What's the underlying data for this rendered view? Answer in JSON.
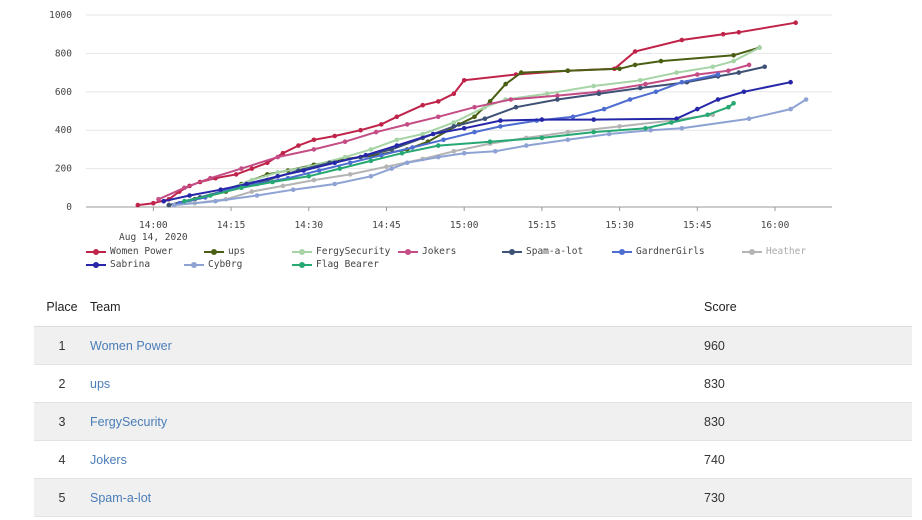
{
  "chart_data": {
    "type": "line",
    "x_axis": {
      "ticks": [
        "14:00",
        "14:15",
        "14:30",
        "14:45",
        "15:00",
        "15:15",
        "15:30",
        "15:45",
        "16:00"
      ],
      "date_label": "Aug 14, 2020"
    },
    "y_axis": {
      "ticks": [
        0,
        200,
        400,
        600,
        800,
        1000
      ],
      "range": [
        0,
        1000
      ]
    },
    "grid": "horizontal",
    "legend_position": "bottom-left",
    "series": [
      {
        "name": "Women Power",
        "color": "#c0234a",
        "points": [
          [
            "13:57",
            10
          ],
          [
            "14:00",
            20
          ],
          [
            "14:03",
            40
          ],
          [
            "14:05",
            80
          ],
          [
            "14:07",
            110
          ],
          [
            "14:09",
            130
          ],
          [
            "14:12",
            150
          ],
          [
            "14:16",
            170
          ],
          [
            "14:19",
            200
          ],
          [
            "14:22",
            230
          ],
          [
            "14:25",
            280
          ],
          [
            "14:28",
            320
          ],
          [
            "14:31",
            350
          ],
          [
            "14:35",
            370
          ],
          [
            "14:40",
            400
          ],
          [
            "14:44",
            430
          ],
          [
            "14:47",
            470
          ],
          [
            "14:52",
            530
          ],
          [
            "14:55",
            550
          ],
          [
            "14:58",
            590
          ],
          [
            "15:00",
            660
          ],
          [
            "15:10",
            690
          ],
          [
            "15:20",
            710
          ],
          [
            "15:29",
            720
          ],
          [
            "15:33",
            810
          ],
          [
            "15:42",
            870
          ],
          [
            "15:50",
            900
          ],
          [
            "15:53",
            910
          ],
          [
            "16:04",
            960
          ]
        ]
      },
      {
        "name": "ups",
        "color": "#4a5f14",
        "points": [
          [
            "14:03",
            10
          ],
          [
            "14:08",
            40
          ],
          [
            "14:14",
            80
          ],
          [
            "14:17",
            120
          ],
          [
            "14:22",
            170
          ],
          [
            "14:26",
            190
          ],
          [
            "14:31",
            220
          ],
          [
            "14:37",
            250
          ],
          [
            "14:43",
            270
          ],
          [
            "14:49",
            300
          ],
          [
            "14:53",
            340
          ],
          [
            "14:59",
            430
          ],
          [
            "15:02",
            470
          ],
          [
            "15:05",
            550
          ],
          [
            "15:08",
            640
          ],
          [
            "15:11",
            700
          ],
          [
            "15:20",
            710
          ],
          [
            "15:30",
            720
          ],
          [
            "15:33",
            740
          ],
          [
            "15:38",
            760
          ],
          [
            "15:52",
            790
          ],
          [
            "15:57",
            830
          ]
        ]
      },
      {
        "name": "FergySecurity",
        "color": "#a6d4a6",
        "points": [
          [
            "14:07",
            30
          ],
          [
            "14:13",
            80
          ],
          [
            "14:19",
            140
          ],
          [
            "14:24",
            180
          ],
          [
            "14:30",
            210
          ],
          [
            "14:37",
            260
          ],
          [
            "14:42",
            300
          ],
          [
            "14:47",
            350
          ],
          [
            "14:52",
            380
          ],
          [
            "14:58",
            440
          ],
          [
            "15:04",
            520
          ],
          [
            "15:08",
            560
          ],
          [
            "15:16",
            590
          ],
          [
            "15:25",
            630
          ],
          [
            "15:34",
            660
          ],
          [
            "15:41",
            700
          ],
          [
            "15:48",
            730
          ],
          [
            "15:52",
            760
          ],
          [
            "15:57",
            830
          ]
        ]
      },
      {
        "name": "Jokers",
        "color": "#c44d86",
        "points": [
          [
            "14:01",
            40
          ],
          [
            "14:06",
            100
          ],
          [
            "14:11",
            150
          ],
          [
            "14:17",
            200
          ],
          [
            "14:24",
            260
          ],
          [
            "14:31",
            300
          ],
          [
            "14:37",
            340
          ],
          [
            "14:43",
            390
          ],
          [
            "14:49",
            430
          ],
          [
            "14:55",
            470
          ],
          [
            "15:02",
            520
          ],
          [
            "15:09",
            560
          ],
          [
            "15:18",
            580
          ],
          [
            "15:26",
            600
          ],
          [
            "15:35",
            640
          ],
          [
            "15:45",
            690
          ],
          [
            "15:51",
            710
          ],
          [
            "15:55",
            740
          ]
        ]
      },
      {
        "name": "Spam-a-lot",
        "color": "#3e5176",
        "points": [
          [
            "14:03",
            10
          ],
          [
            "14:09",
            50
          ],
          [
            "14:16",
            100
          ],
          [
            "14:22",
            140
          ],
          [
            "14:28",
            190
          ],
          [
            "14:34",
            230
          ],
          [
            "14:40",
            260
          ],
          [
            "14:46",
            300
          ],
          [
            "14:52",
            360
          ],
          [
            "14:58",
            420
          ],
          [
            "15:04",
            460
          ],
          [
            "15:10",
            520
          ],
          [
            "15:18",
            560
          ],
          [
            "15:26",
            590
          ],
          [
            "15:34",
            620
          ],
          [
            "15:43",
            650
          ],
          [
            "15:49",
            680
          ],
          [
            "15:53",
            700
          ],
          [
            "15:58",
            730
          ]
        ]
      },
      {
        "name": "GardnerGirls",
        "color": "#4e6dd1",
        "points": [
          [
            "14:05",
            20
          ],
          [
            "14:10",
            50
          ],
          [
            "14:14",
            90
          ],
          [
            "14:20",
            120
          ],
          [
            "14:26",
            150
          ],
          [
            "14:32",
            190
          ],
          [
            "14:38",
            230
          ],
          [
            "14:44",
            270
          ],
          [
            "14:50",
            310
          ],
          [
            "14:56",
            350
          ],
          [
            "15:02",
            390
          ],
          [
            "15:07",
            420
          ],
          [
            "15:14",
            450
          ],
          [
            "15:21",
            470
          ],
          [
            "15:27",
            510
          ],
          [
            "15:32",
            560
          ],
          [
            "15:37",
            600
          ],
          [
            "15:42",
            650
          ],
          [
            "15:49",
            690
          ]
        ]
      },
      {
        "name": "Heather",
        "color": "#b4b4b4",
        "points": [
          [
            "14:08",
            20
          ],
          [
            "14:14",
            40
          ],
          [
            "14:19",
            80
          ],
          [
            "14:25",
            110
          ],
          [
            "14:31",
            140
          ],
          [
            "14:38",
            170
          ],
          [
            "14:45",
            210
          ],
          [
            "14:52",
            250
          ],
          [
            "14:58",
            290
          ],
          [
            "15:05",
            330
          ],
          [
            "15:12",
            360
          ],
          [
            "15:20",
            390
          ],
          [
            "15:30",
            420
          ],
          [
            "15:40",
            450
          ],
          [
            "15:48",
            480
          ]
        ]
      },
      {
        "name": "Sabrina",
        "color": "#2626a8",
        "points": [
          [
            "14:02",
            30
          ],
          [
            "14:07",
            60
          ],
          [
            "14:13",
            90
          ],
          [
            "14:18",
            120
          ],
          [
            "14:24",
            160
          ],
          [
            "14:29",
            190
          ],
          [
            "14:35",
            230
          ],
          [
            "14:41",
            270
          ],
          [
            "14:47",
            320
          ],
          [
            "14:54",
            380
          ],
          [
            "15:00",
            410
          ],
          [
            "15:07",
            450
          ],
          [
            "15:15",
            455
          ],
          [
            "15:25",
            455
          ],
          [
            "15:41",
            460
          ],
          [
            "15:45",
            510
          ],
          [
            "15:49",
            560
          ],
          [
            "15:54",
            600
          ],
          [
            "16:03",
            650
          ]
        ]
      },
      {
        "name": "Cyb0rg",
        "color": "#8ea3d4",
        "points": [
          [
            "14:04",
            10
          ],
          [
            "14:12",
            30
          ],
          [
            "14:20",
            60
          ],
          [
            "14:27",
            90
          ],
          [
            "14:35",
            120
          ],
          [
            "14:42",
            160
          ],
          [
            "14:46",
            200
          ],
          [
            "14:49",
            230
          ],
          [
            "14:55",
            260
          ],
          [
            "15:00",
            280
          ],
          [
            "15:06",
            290
          ],
          [
            "15:12",
            320
          ],
          [
            "15:20",
            350
          ],
          [
            "15:28",
            380
          ],
          [
            "15:36",
            400
          ],
          [
            "15:42",
            410
          ],
          [
            "15:55",
            460
          ],
          [
            "16:03",
            510
          ],
          [
            "16:06",
            560
          ]
        ]
      },
      {
        "name": "Flag Bearer",
        "color": "#26a872",
        "points": [
          [
            "14:06",
            30
          ],
          [
            "14:11",
            60
          ],
          [
            "14:17",
            100
          ],
          [
            "14:23",
            130
          ],
          [
            "14:30",
            160
          ],
          [
            "14:36",
            200
          ],
          [
            "14:42",
            240
          ],
          [
            "14:48",
            280
          ],
          [
            "14:55",
            320
          ],
          [
            "15:05",
            340
          ],
          [
            "15:15",
            360
          ],
          [
            "15:25",
            390
          ],
          [
            "15:35",
            410
          ],
          [
            "15:40",
            440
          ],
          [
            "15:47",
            480
          ],
          [
            "15:51",
            520
          ],
          [
            "15:52",
            540
          ]
        ]
      }
    ]
  },
  "scoreboard": {
    "headers": {
      "place": "Place",
      "team": "Team",
      "score": "Score"
    },
    "rows": [
      {
        "place": "1",
        "team": "Women Power",
        "score": "960"
      },
      {
        "place": "2",
        "team": "ups",
        "score": "830"
      },
      {
        "place": "3",
        "team": "FergySecurity",
        "score": "830"
      },
      {
        "place": "4",
        "team": "Jokers",
        "score": "740"
      },
      {
        "place": "5",
        "team": "Spam-a-lot",
        "score": "730"
      }
    ]
  }
}
